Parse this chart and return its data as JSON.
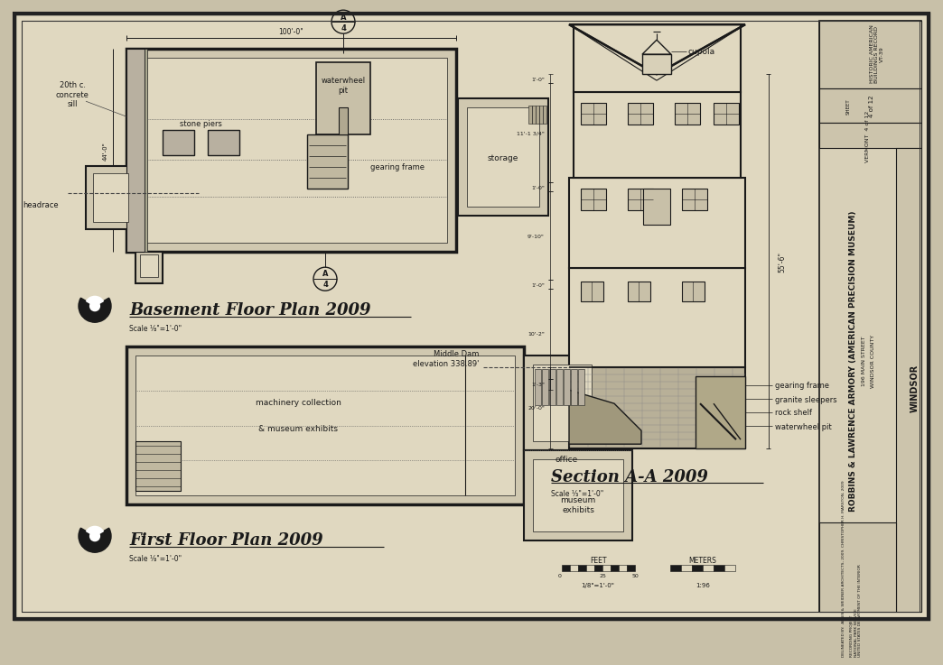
{
  "page_bg": "#c8c0a8",
  "paper_color": "#e0d8c0",
  "line_color": "#1a1a1a",
  "wall_fill": "#d0c8b0",
  "basement_title": "Basement Floor Plan 2009",
  "basement_scale": "Scale ⅛\"=1'-0\"",
  "first_floor_title": "First Floor Plan 2009",
  "first_floor_scale": "Scale ⅛\"=1'-0\"",
  "section_title": "Section A-A 2009",
  "section_scale": "Scale ⅓\"=1'-0\"",
  "building_title": "ROBBINS & LAWRENCE ARMORY (AMERICAN PRECISION MUSEUM)",
  "address": "196 MAIN STREET",
  "city_county": "WINDSOR COUNTY",
  "state": "VERMONT  4 of 12",
  "sheet_label": "SHEET\n4 of 12",
  "record_text": "HISTORIC AMERICAN\nBUILDINGS RECORD\nVT-39",
  "windsor": "WINDSOR",
  "delineated": "DELINEATED BY:  AEGIS & WEIDNER ARCHITECTS, 2009. CHRISTOPHER H. MARSTON, 2009\n\nRECORDING PROJECT\nNATIONAL PARK SERVICE\nUNITED STATES DEPARTMENT OF THE INTERIOR",
  "dim100": "100'-0\"",
  "dim_vert": "44'-0\"",
  "section_dims": [
    "1'-0\"",
    "11'-1 3/4\"",
    "1'-0\"",
    "9'-10\"",
    "1'-0\"",
    "10'-2\"",
    "1'-3\"",
    "20'-0\""
  ],
  "total_height": "55'-6\"",
  "middle_dam": "Middle Dam\nelevation 338.89'",
  "cupola": "cupola",
  "gearing_frame": "gearing frame",
  "granite_sleepers": "granite sleepers",
  "rock_shelf": "rock shelf",
  "waterwheel_pit": "waterwheel pit",
  "waterwheel_pit_label": "waterwheel\npit",
  "gearing_frame_label": "gearing frame",
  "storage": "storage",
  "stone_piers": "stone piers",
  "headrace": "headrace",
  "concrete_sill": "20th c.\nconcrete\nsill",
  "machinery": "machinery collection",
  "museum_exhibits_label": "& museum exhibits",
  "office": "office",
  "museum_exhibits2": "museum\nexhibits",
  "feet_label": "FEET",
  "meters_label": "METERS",
  "scale_label1": "1/8\"=1'-0\"",
  "scale_label2": "1:96"
}
